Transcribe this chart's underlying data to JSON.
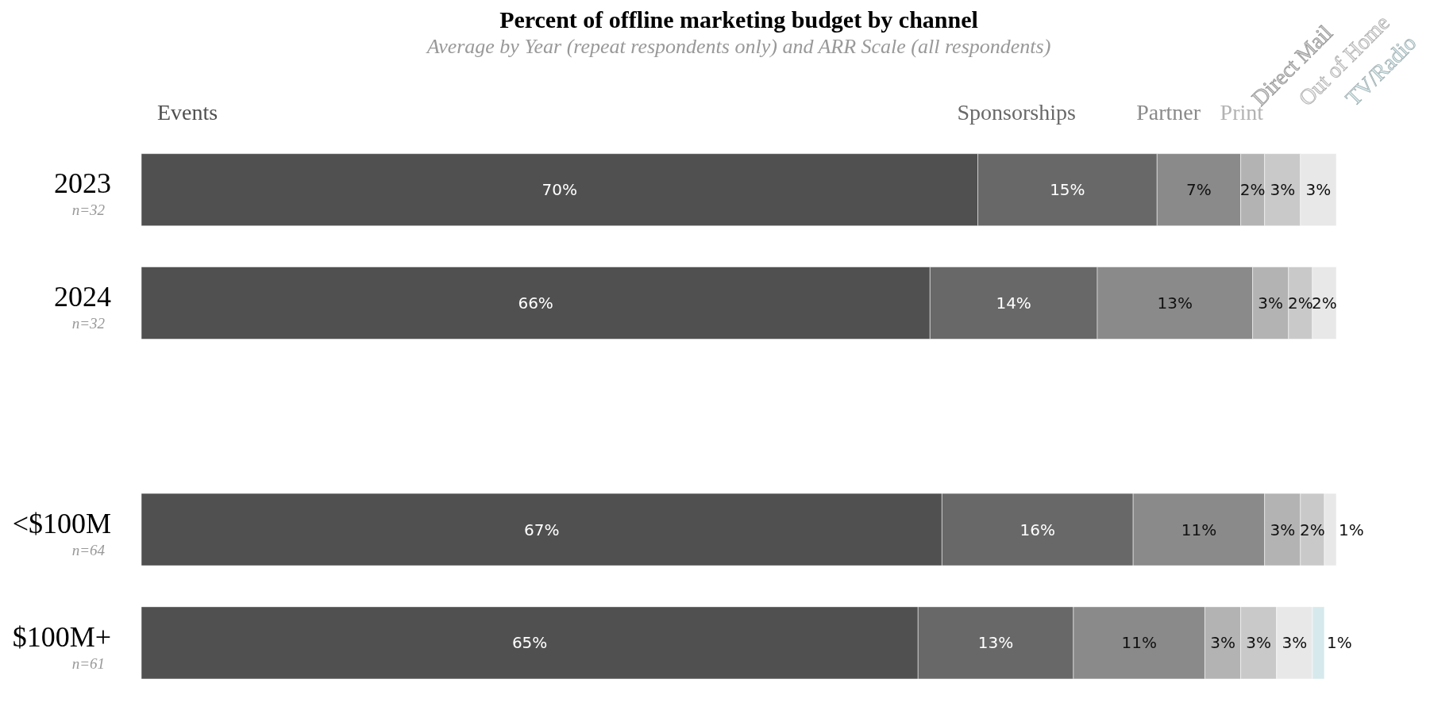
{
  "chart_data": {
    "type": "bar",
    "orientation": "horizontal",
    "stacked": true,
    "title": "Percent of offline marketing budget by channel",
    "subtitle": "Average by Year (repeat respondents only) and ARR Scale (all respondents)",
    "categories": [
      "2023\nn=32",
      "2024\nn=32",
      null,
      "<$100M\nn=64",
      "$100M+\nn=61"
    ],
    "legend": "top",
    "series": [
      {
        "name": "Events",
        "color": "#505050",
        "values": [
          70,
          66,
          null,
          67,
          65
        ],
        "value_labels": [
          "70%",
          "66%",
          null,
          "67%",
          "65%"
        ]
      },
      {
        "name": "Sponsorships",
        "color": "#686868",
        "values": [
          15,
          14,
          null,
          16,
          13
        ],
        "value_labels": [
          "15%",
          "14%",
          null,
          "16%",
          "13%"
        ]
      },
      {
        "name": "Partner",
        "color": "#8a8a8a",
        "values": [
          7,
          13,
          null,
          11,
          11
        ],
        "value_labels": [
          "7%",
          "13%",
          null,
          "11%",
          "11%"
        ]
      },
      {
        "name": "Print",
        "color": "#b3b3b3",
        "values": [
          2,
          3,
          null,
          3,
          3
        ],
        "value_labels": [
          "2%",
          "3%",
          null,
          "3%",
          "3%"
        ]
      },
      {
        "name": "Direct Mail",
        "color": "#c9c9c9",
        "values": [
          3,
          2,
          null,
          2,
          3
        ],
        "value_labels": [
          "3%",
          "2%",
          null,
          "2%",
          "3%"
        ]
      },
      {
        "name": "Out of Home",
        "color": "#e8e8e8",
        "values": [
          3,
          2,
          null,
          1,
          3
        ],
        "value_labels": [
          "3%",
          "2%",
          null,
          "1%",
          "3%"
        ]
      },
      {
        "name": "TV/Radio",
        "color": "#d6e9ec",
        "values": [
          null,
          null,
          null,
          null,
          1
        ],
        "value_labels": [
          null,
          null,
          null,
          null,
          "1%"
        ]
      }
    ]
  }
}
